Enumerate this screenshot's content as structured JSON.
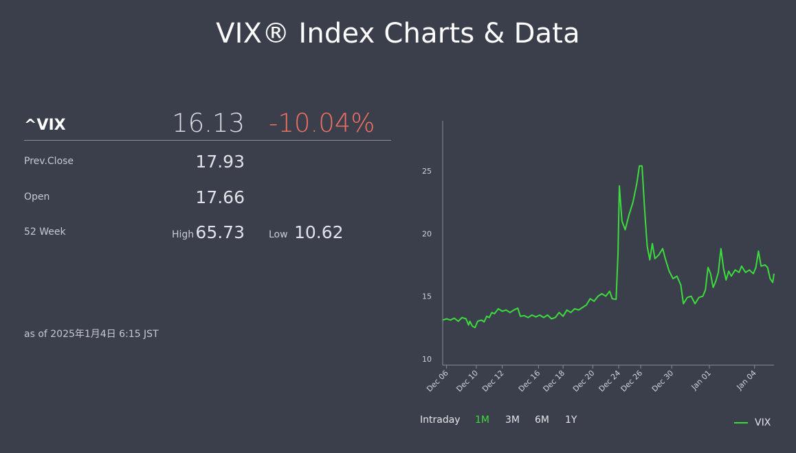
{
  "title": "VIX® Index Charts & Data",
  "quote": {
    "symbol": "^VIX",
    "last": "16.13",
    "change_pct": "-10.04%",
    "prev_close_label": "Prev.Close",
    "prev_close": "17.93",
    "open_label": "Open",
    "open": "17.66",
    "week52_label": "52 Week",
    "high_label": "High",
    "high": "65.73",
    "low_label": "Low",
    "low": "10.62",
    "as_of": "as of 2025年1月4日 6:15 JST"
  },
  "colors": {
    "background": "#3b3f4c",
    "series": "#3ddc3d",
    "negative": "#f07162"
  },
  "ranges": [
    "Intraday",
    "1M",
    "3M",
    "6M",
    "1Y"
  ],
  "active_range": "1M",
  "chart_data": {
    "type": "line",
    "series": [
      {
        "name": "VIX",
        "points": [
          [
            0.0,
            13.1
          ],
          [
            0.3,
            13.2
          ],
          [
            0.6,
            13.1
          ],
          [
            0.9,
            13.25
          ],
          [
            1.2,
            13.0
          ],
          [
            1.5,
            13.3
          ],
          [
            1.8,
            13.2
          ],
          [
            2.0,
            12.7
          ],
          [
            2.1,
            13.0
          ],
          [
            2.3,
            12.6
          ],
          [
            2.5,
            12.5
          ],
          [
            2.7,
            13.0
          ],
          [
            3.0,
            13.1
          ],
          [
            3.2,
            12.95
          ],
          [
            3.4,
            13.4
          ],
          [
            3.6,
            13.3
          ],
          [
            3.8,
            13.7
          ],
          [
            4.0,
            13.6
          ],
          [
            4.3,
            14.0
          ],
          [
            4.6,
            13.8
          ],
          [
            4.9,
            13.9
          ],
          [
            5.2,
            13.7
          ],
          [
            5.5,
            13.9
          ],
          [
            5.8,
            14.05
          ],
          [
            6.0,
            13.4
          ],
          [
            6.3,
            13.45
          ],
          [
            6.6,
            13.3
          ],
          [
            6.9,
            13.5
          ],
          [
            7.2,
            13.35
          ],
          [
            7.5,
            13.5
          ],
          [
            7.8,
            13.3
          ],
          [
            8.1,
            13.5
          ],
          [
            8.4,
            13.2
          ],
          [
            8.7,
            13.3
          ],
          [
            9.0,
            13.7
          ],
          [
            9.3,
            13.4
          ],
          [
            9.6,
            13.9
          ],
          [
            9.9,
            13.7
          ],
          [
            10.2,
            14.0
          ],
          [
            10.5,
            13.9
          ],
          [
            10.8,
            14.1
          ],
          [
            11.1,
            14.3
          ],
          [
            11.4,
            14.8
          ],
          [
            11.7,
            14.6
          ],
          [
            12.0,
            15.0
          ],
          [
            12.3,
            15.2
          ],
          [
            12.6,
            15.0
          ],
          [
            12.9,
            15.4
          ],
          [
            13.1,
            14.8
          ],
          [
            13.4,
            14.75
          ],
          [
            13.55,
            18.5
          ],
          [
            13.65,
            23.8
          ],
          [
            13.85,
            21.0
          ],
          [
            14.1,
            20.3
          ],
          [
            14.4,
            21.5
          ],
          [
            14.7,
            22.5
          ],
          [
            15.0,
            24.0
          ],
          [
            15.2,
            25.4
          ],
          [
            15.4,
            25.4
          ],
          [
            15.6,
            22.0
          ],
          [
            15.8,
            19.0
          ],
          [
            16.0,
            17.9
          ],
          [
            16.2,
            19.2
          ],
          [
            16.4,
            18.0
          ],
          [
            16.7,
            18.3
          ],
          [
            17.0,
            18.8
          ],
          [
            17.2,
            18.0
          ],
          [
            17.5,
            17.0
          ],
          [
            17.8,
            16.4
          ],
          [
            18.1,
            16.6
          ],
          [
            18.4,
            15.9
          ],
          [
            18.6,
            14.4
          ],
          [
            18.9,
            14.9
          ],
          [
            19.2,
            15.0
          ],
          [
            19.5,
            14.4
          ],
          [
            19.8,
            14.9
          ],
          [
            20.1,
            15.0
          ],
          [
            20.3,
            15.5
          ],
          [
            20.5,
            17.3
          ],
          [
            20.7,
            16.8
          ],
          [
            20.9,
            15.7
          ],
          [
            21.1,
            16.2
          ],
          [
            21.3,
            16.9
          ],
          [
            21.5,
            18.8
          ],
          [
            21.7,
            17.2
          ],
          [
            21.9,
            16.3
          ],
          [
            22.1,
            17.0
          ],
          [
            22.3,
            16.6
          ],
          [
            22.6,
            17.1
          ],
          [
            22.9,
            16.9
          ],
          [
            23.1,
            17.4
          ],
          [
            23.4,
            16.9
          ],
          [
            23.7,
            17.1
          ],
          [
            24.0,
            16.8
          ],
          [
            24.2,
            17.3
          ],
          [
            24.4,
            18.6
          ],
          [
            24.6,
            17.4
          ],
          [
            24.9,
            17.5
          ],
          [
            25.1,
            17.3
          ],
          [
            25.3,
            16.4
          ],
          [
            25.5,
            16.1
          ],
          [
            25.6,
            16.8
          ]
        ]
      }
    ],
    "x_ticks": [
      "Dec 06",
      "Dec 10",
      "Dec 12",
      "Dec 16",
      "Dec 18",
      "Dec 20",
      "Dec 24",
      "Dec 26",
      "Dec 30",
      "Jan 01",
      "Jan 04"
    ],
    "x_tick_positions": [
      0.3,
      2.6,
      4.6,
      7.4,
      9.3,
      11.6,
      13.6,
      15.3,
      17.7,
      20.6,
      24.1
    ],
    "x_range": [
      0,
      25.6
    ],
    "y_ticks": [
      10,
      15,
      20,
      25
    ],
    "ylim": [
      9.5,
      29
    ]
  },
  "legend": {
    "label": "VIX"
  }
}
